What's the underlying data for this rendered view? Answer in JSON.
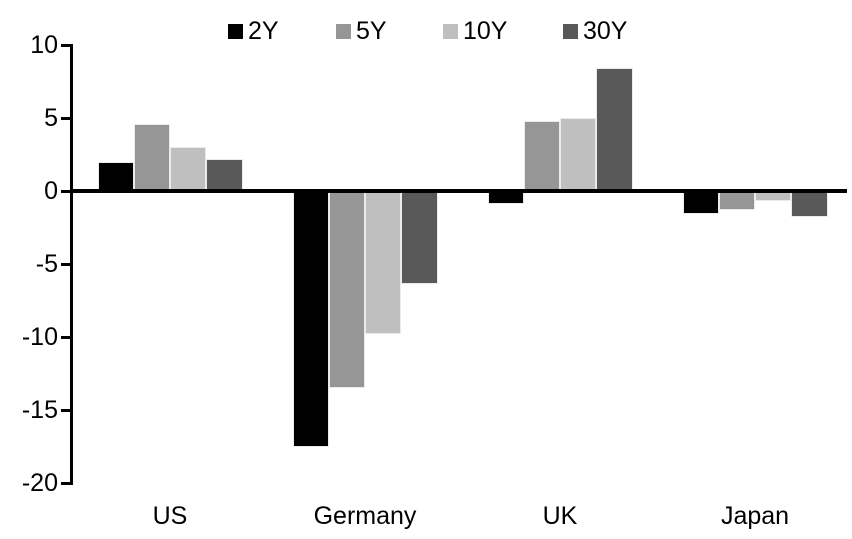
{
  "chart_data": {
    "type": "bar",
    "title": "",
    "categories": [
      "US",
      "Germany",
      "UK",
      "Japan"
    ],
    "series": [
      {
        "name": "2Y",
        "color": "#000000",
        "values": [
          2.0,
          -17.5,
          -0.9,
          -1.6
        ]
      },
      {
        "name": "5Y",
        "color": "#969696",
        "values": [
          4.6,
          -13.5,
          4.8,
          -1.3
        ]
      },
      {
        "name": "10Y",
        "color": "#bfbfbf",
        "values": [
          3.0,
          -9.8,
          5.0,
          -0.7
        ]
      },
      {
        "name": "30Y",
        "color": "#595959",
        "values": [
          2.2,
          -6.4,
          8.4,
          -1.8
        ]
      }
    ],
    "y_ticks": [
      10,
      5,
      0,
      -5,
      -10,
      -15,
      -20
    ],
    "ylim": [
      -20,
      10
    ],
    "xlabel": "",
    "ylabel": "",
    "legend_position": "top",
    "grid": false,
    "axis_color": "#000000",
    "background_color": "#ffffff",
    "bar_border_color": "#ebebeb"
  }
}
